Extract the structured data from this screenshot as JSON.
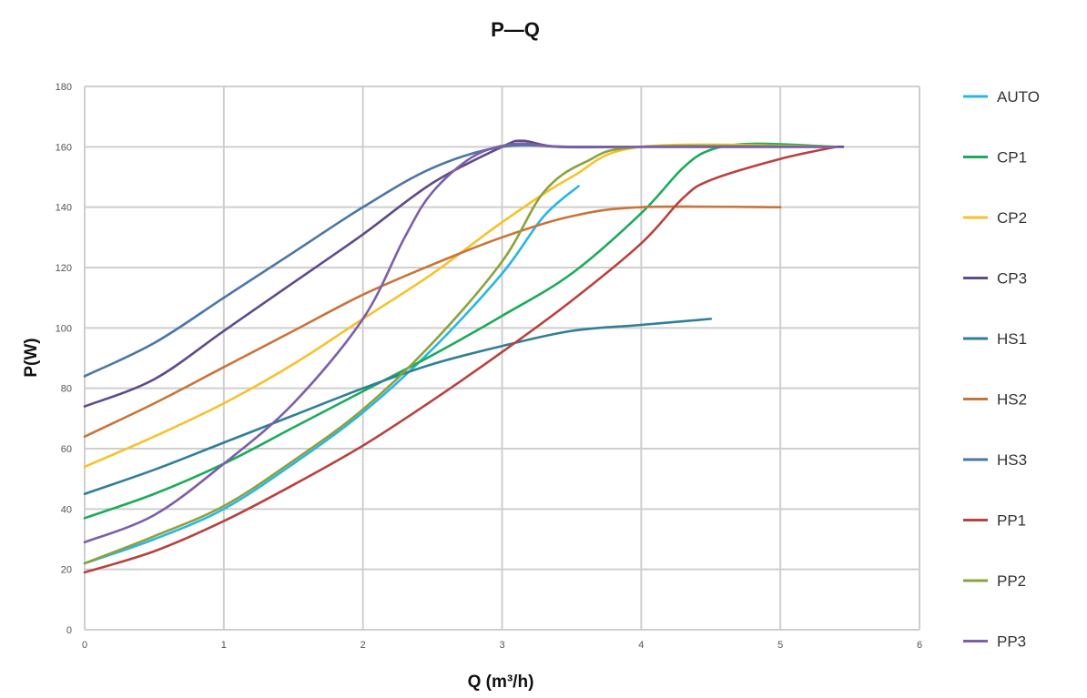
{
  "chart_data": {
    "type": "line",
    "title": "P—Q",
    "xlabel": "Q (m³/h)",
    "ylabel": "P(W)",
    "xlim": [
      0,
      6
    ],
    "ylim": [
      0,
      180
    ],
    "xticks": [
      0,
      1,
      2,
      3,
      4,
      5,
      6
    ],
    "yticks": [
      0,
      20,
      40,
      60,
      80,
      100,
      120,
      140,
      160,
      180
    ],
    "grid": true,
    "legend_position": "right",
    "series": [
      {
        "name": "AUTO",
        "color": "#2bb5e6",
        "points": [
          [
            0,
            22
          ],
          [
            0.5,
            30
          ],
          [
            1,
            40
          ],
          [
            1.5,
            55
          ],
          [
            2,
            72
          ],
          [
            2.5,
            93
          ],
          [
            3,
            118
          ],
          [
            3.3,
            137
          ],
          [
            3.55,
            147
          ]
        ]
      },
      {
        "name": "CP1",
        "color": "#1cab5a",
        "points": [
          [
            0,
            37
          ],
          [
            0.5,
            45
          ],
          [
            1,
            55
          ],
          [
            1.5,
            67
          ],
          [
            2,
            79
          ],
          [
            2.5,
            91
          ],
          [
            3,
            104
          ],
          [
            3.5,
            118
          ],
          [
            4,
            138
          ],
          [
            4.3,
            153
          ],
          [
            4.5,
            159
          ],
          [
            4.8,
            161
          ],
          [
            5.4,
            160
          ]
        ]
      },
      {
        "name": "CP2",
        "color": "#f6c22c",
        "points": [
          [
            0,
            54
          ],
          [
            0.5,
            64
          ],
          [
            1,
            75
          ],
          [
            1.5,
            88
          ],
          [
            2,
            103
          ],
          [
            2.5,
            118
          ],
          [
            3,
            135
          ],
          [
            3.5,
            150
          ],
          [
            4,
            160
          ],
          [
            5.4,
            160
          ]
        ]
      },
      {
        "name": "CP3",
        "color": "#5f4a8c",
        "points": [
          [
            0,
            74
          ],
          [
            0.5,
            83
          ],
          [
            1,
            99
          ],
          [
            1.5,
            115
          ],
          [
            2,
            131
          ],
          [
            2.5,
            148
          ],
          [
            3,
            160
          ],
          [
            3.15,
            162
          ],
          [
            3.4,
            160
          ],
          [
            4,
            160
          ],
          [
            5.45,
            160
          ]
        ]
      },
      {
        "name": "HS1",
        "color": "#2f7f98",
        "points": [
          [
            0,
            45
          ],
          [
            0.5,
            53
          ],
          [
            1,
            62
          ],
          [
            1.5,
            71
          ],
          [
            2,
            80
          ],
          [
            2.5,
            88
          ],
          [
            3,
            94
          ],
          [
            3.5,
            99
          ],
          [
            4,
            101
          ],
          [
            4.5,
            103
          ]
        ]
      },
      {
        "name": "HS2",
        "color": "#c9743b",
        "points": [
          [
            0,
            64
          ],
          [
            0.5,
            75
          ],
          [
            1,
            87
          ],
          [
            1.5,
            99
          ],
          [
            2,
            111
          ],
          [
            2.5,
            121
          ],
          [
            3,
            130
          ],
          [
            3.5,
            137
          ],
          [
            4,
            140
          ],
          [
            5,
            140
          ]
        ]
      },
      {
        "name": "HS3",
        "color": "#4b76a6",
        "points": [
          [
            0,
            84
          ],
          [
            0.5,
            95
          ],
          [
            1,
            110
          ],
          [
            1.5,
            125
          ],
          [
            2,
            140
          ],
          [
            2.5,
            153
          ],
          [
            3,
            160
          ],
          [
            3.5,
            160
          ],
          [
            4,
            160
          ],
          [
            5.4,
            160
          ]
        ]
      },
      {
        "name": "PP1",
        "color": "#b8423f",
        "points": [
          [
            0,
            19
          ],
          [
            0.5,
            26
          ],
          [
            1,
            36
          ],
          [
            1.5,
            48
          ],
          [
            2,
            61
          ],
          [
            2.5,
            76
          ],
          [
            3,
            92
          ],
          [
            3.5,
            109
          ],
          [
            4,
            128
          ],
          [
            4.3,
            143
          ],
          [
            4.5,
            149
          ],
          [
            5,
            156
          ],
          [
            5.4,
            160
          ]
        ]
      },
      {
        "name": "PP2",
        "color": "#8aa33d",
        "points": [
          [
            0,
            22
          ],
          [
            0.5,
            31
          ],
          [
            1,
            41
          ],
          [
            1.5,
            56
          ],
          [
            2,
            73
          ],
          [
            2.5,
            95
          ],
          [
            3,
            122
          ],
          [
            3.3,
            145
          ],
          [
            3.6,
            155
          ],
          [
            4,
            160
          ],
          [
            5.4,
            160
          ]
        ]
      },
      {
        "name": "PP3",
        "color": "#7c5fa8",
        "points": [
          [
            0,
            29
          ],
          [
            0.5,
            38
          ],
          [
            1,
            55
          ],
          [
            1.5,
            75
          ],
          [
            2,
            103
          ],
          [
            2.3,
            130
          ],
          [
            2.5,
            145
          ],
          [
            2.8,
            157
          ],
          [
            3.1,
            161
          ],
          [
            3.4,
            160
          ],
          [
            4,
            160
          ],
          [
            5.4,
            160
          ]
        ]
      }
    ]
  }
}
